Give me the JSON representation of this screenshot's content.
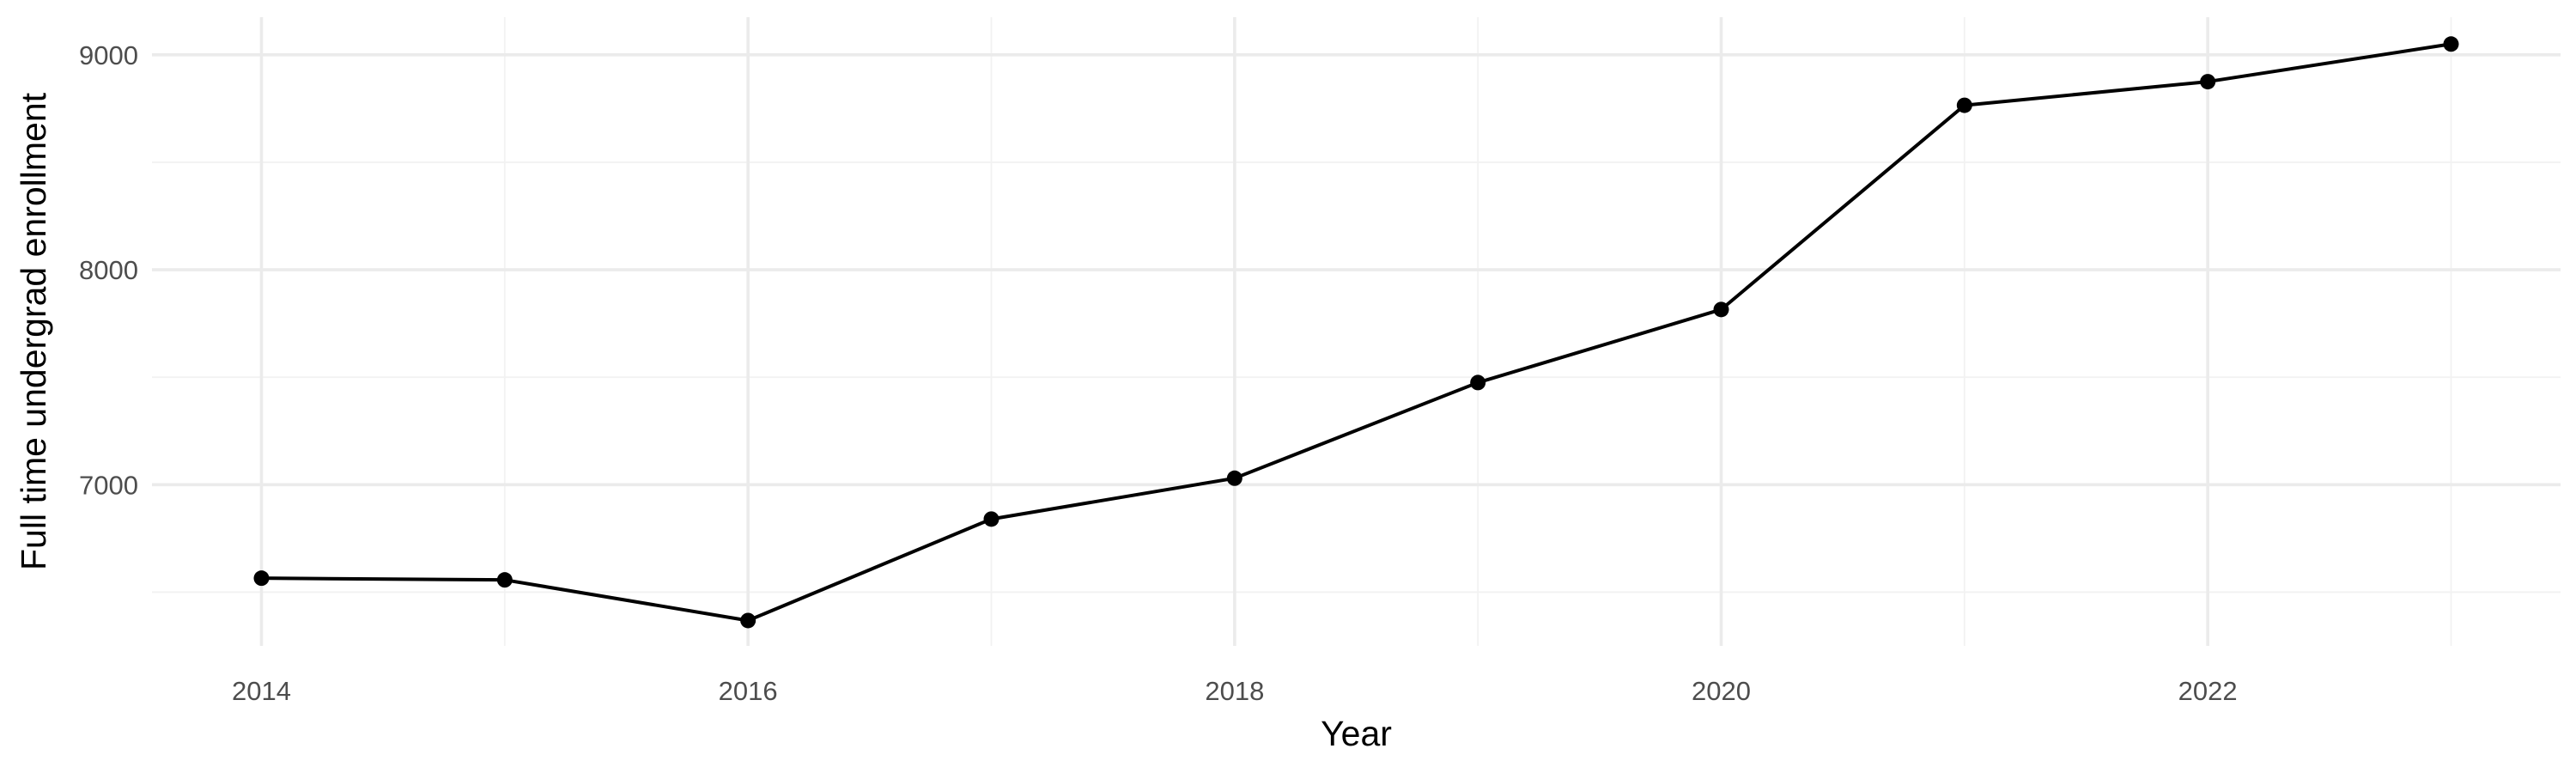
{
  "chart_data": {
    "type": "line",
    "title": "",
    "xlabel": "Year",
    "ylabel": "Full time undergrad enrollment",
    "x": [
      2014,
      2015,
      2016,
      2017,
      2018,
      2019,
      2020,
      2021,
      2022,
      2023
    ],
    "series": [
      {
        "values": [
          6565,
          6557,
          6368,
          6840,
          7030,
          7475,
          7815,
          8765,
          8875,
          9050
        ]
      }
    ],
    "xlim": [
      2013.55,
      2023.45
    ],
    "ylim": [
      6250,
      9175
    ],
    "x_major_ticks": [
      2014,
      2016,
      2018,
      2020,
      2022
    ],
    "x_minor_ticks": [
      2015,
      2017,
      2019,
      2021,
      2023
    ],
    "y_major_ticks": [
      7000,
      8000,
      9000
    ],
    "y_minor_ticks": [
      6500,
      7500,
      8500
    ],
    "x_tick_labels": [
      "2014",
      "2016",
      "2018",
      "2020",
      "2022"
    ],
    "y_tick_labels": [
      "7000",
      "8000",
      "9000"
    ],
    "grid": true,
    "legend": "none",
    "colors": {
      "line": "#000000",
      "point": "#000000",
      "grid_major": "#ebebeb",
      "grid_minor": "#f2f2f2",
      "tick_text": "#4d4d4d",
      "axis_title": "#000000",
      "background": "#ffffff"
    }
  }
}
